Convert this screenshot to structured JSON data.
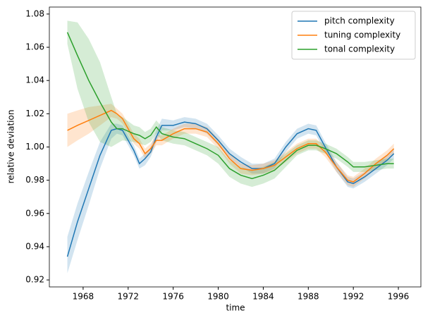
{
  "chart_data": {
    "type": "line",
    "xlabel": "time",
    "ylabel": "relative deviation",
    "x": [
      1966.6,
      1967.5,
      1968.5,
      1969.5,
      1970.5,
      1971,
      1971.5,
      1972.5,
      1973,
      1973.5,
      1974,
      1974.5,
      1975,
      1976,
      1977,
      1978,
      1979,
      1980,
      1981,
      1982,
      1983,
      1984,
      1985,
      1986,
      1987,
      1988,
      1988.7,
      1989.5,
      1990.5,
      1991.5,
      1992,
      1993,
      1994,
      1995,
      1995.6
    ],
    "series": [
      {
        "name": "pitch complexity",
        "color": "#1f77b4",
        "values": [
          0.934,
          0.955,
          0.975,
          0.995,
          1.01,
          1.011,
          1.01,
          0.998,
          0.99,
          0.993,
          0.997,
          1.006,
          1.013,
          1.013,
          1.015,
          1.014,
          1.011,
          1.004,
          0.996,
          0.991,
          0.987,
          0.987,
          0.99,
          1.0,
          1.008,
          1.011,
          1.01,
          1.0,
          0.988,
          0.979,
          0.978,
          0.982,
          0.987,
          0.992,
          0.996
        ],
        "lower": [
          0.924,
          0.944,
          0.965,
          0.987,
          1.005,
          1.008,
          1.007,
          0.995,
          0.987,
          0.989,
          0.994,
          1.003,
          1.01,
          1.01,
          1.012,
          1.011,
          1.008,
          1.001,
          0.993,
          0.988,
          0.984,
          0.984,
          0.987,
          0.997,
          1.005,
          1.008,
          1.007,
          0.997,
          0.985,
          0.976,
          0.975,
          0.979,
          0.984,
          0.989,
          0.993
        ],
        "upper": [
          0.946,
          0.966,
          0.985,
          1.003,
          1.014,
          1.014,
          1.013,
          1.001,
          0.993,
          0.996,
          1.0,
          1.01,
          1.017,
          1.016,
          1.018,
          1.017,
          1.014,
          1.007,
          0.999,
          0.994,
          0.99,
          0.99,
          0.993,
          1.003,
          1.011,
          1.014,
          1.013,
          1.003,
          0.991,
          0.982,
          0.981,
          0.985,
          0.99,
          0.995,
          0.999
        ]
      },
      {
        "name": "tuning complexity",
        "color": "#ff7f0e",
        "values": [
          1.01,
          1.013,
          1.016,
          1.019,
          1.022,
          1.02,
          1.017,
          1.005,
          1.002,
          0.996,
          0.999,
          1.004,
          1.004,
          1.008,
          1.011,
          1.011,
          1.009,
          1.002,
          0.993,
          0.987,
          0.986,
          0.987,
          0.989,
          0.994,
          0.999,
          1.002,
          1.002,
          0.997,
          0.988,
          0.98,
          0.979,
          0.984,
          0.99,
          0.995,
          0.999
        ],
        "lower": [
          1.0,
          1.004,
          1.008,
          1.013,
          1.018,
          1.017,
          1.014,
          1.002,
          0.999,
          0.993,
          0.996,
          1.001,
          1.001,
          1.005,
          1.008,
          1.008,
          1.006,
          0.999,
          0.99,
          0.984,
          0.983,
          0.984,
          0.986,
          0.991,
          0.996,
          0.999,
          0.999,
          0.994,
          0.985,
          0.977,
          0.976,
          0.981,
          0.987,
          0.992,
          0.996
        ],
        "upper": [
          1.02,
          1.022,
          1.024,
          1.025,
          1.026,
          1.023,
          1.02,
          1.008,
          1.005,
          0.999,
          1.002,
          1.007,
          1.007,
          1.011,
          1.014,
          1.014,
          1.012,
          1.005,
          0.996,
          0.99,
          0.989,
          0.99,
          0.992,
          0.997,
          1.002,
          1.005,
          1.005,
          1.0,
          0.991,
          0.983,
          0.982,
          0.987,
          0.993,
          0.998,
          1.002
        ]
      },
      {
        "name": "tonal complexity",
        "color": "#2ca02c",
        "values": [
          1.069,
          1.055,
          1.04,
          1.027,
          1.015,
          1.011,
          1.011,
          1.008,
          1.007,
          1.005,
          1.007,
          1.012,
          1.008,
          1.006,
          1.005,
          1.002,
          0.999,
          0.995,
          0.987,
          0.983,
          0.981,
          0.983,
          0.986,
          0.992,
          0.998,
          1.001,
          1.001,
          0.999,
          0.996,
          0.991,
          0.988,
          0.988,
          0.989,
          0.99,
          0.99
        ],
        "lower": [
          1.062,
          1.035,
          1.015,
          1.003,
          1.0,
          1.002,
          1.004,
          1.003,
          1.002,
          1.001,
          1.003,
          1.008,
          1.004,
          1.002,
          1.001,
          0.998,
          0.995,
          0.99,
          0.982,
          0.978,
          0.976,
          0.978,
          0.981,
          0.988,
          0.995,
          0.998,
          0.998,
          0.996,
          0.993,
          0.988,
          0.985,
          0.985,
          0.986,
          0.987,
          0.987
        ],
        "upper": [
          1.076,
          1.075,
          1.065,
          1.051,
          1.03,
          1.02,
          1.018,
          1.013,
          1.012,
          1.009,
          1.011,
          1.016,
          1.012,
          1.01,
          1.009,
          1.006,
          1.003,
          1.0,
          0.992,
          0.988,
          0.986,
          0.988,
          0.991,
          0.996,
          1.001,
          1.004,
          1.004,
          1.002,
          0.999,
          0.994,
          0.991,
          0.991,
          0.992,
          0.993,
          0.993
        ]
      }
    ],
    "xlim": [
      1965,
      1998
    ],
    "xticks": [
      1968,
      1972,
      1976,
      1980,
      1984,
      1988,
      1992,
      1996
    ],
    "ylim": [
      0.9158,
      1.0842
    ],
    "yticks": [
      0.92,
      0.94,
      0.96,
      0.98,
      {
        "value": 1,
        "label": "1.00"
      },
      1.02,
      1.04,
      1.06,
      1.08
    ],
    "legend": "upper right"
  }
}
